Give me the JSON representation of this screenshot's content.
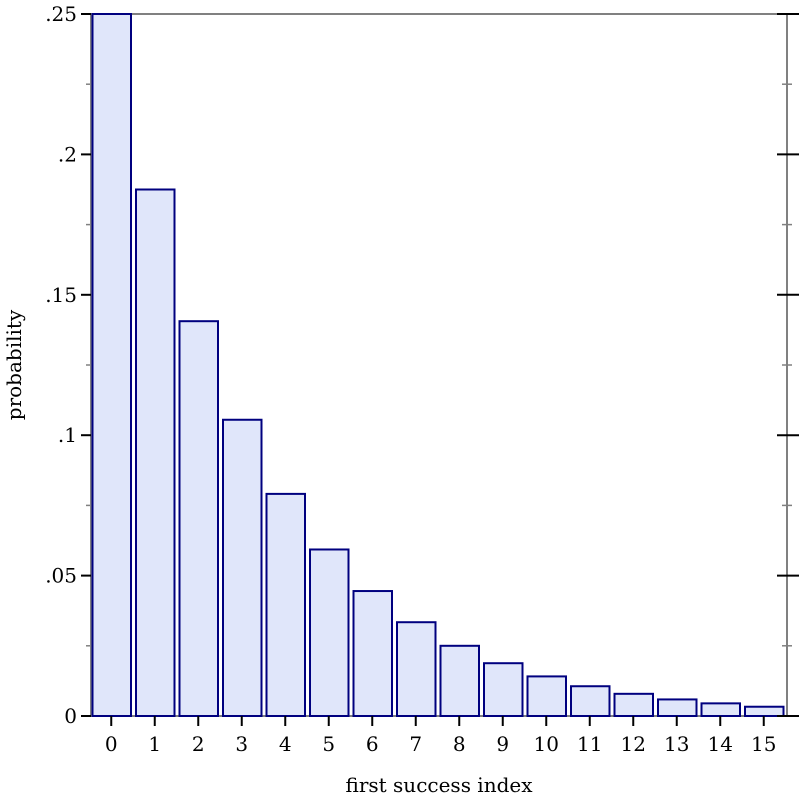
{
  "chart_data": {
    "type": "bar",
    "title": "",
    "xlabel": "first success index",
    "ylabel": "probability",
    "categories": [
      "0",
      "1",
      "2",
      "3",
      "4",
      "5",
      "6",
      "7",
      "8",
      "9",
      "10",
      "11",
      "12",
      "13",
      "14",
      "15"
    ],
    "values": [
      0.25,
      0.1875,
      0.1406,
      0.1055,
      0.0791,
      0.0593,
      0.0445,
      0.0334,
      0.025,
      0.0188,
      0.0141,
      0.0106,
      0.0079,
      0.0059,
      0.0045,
      0.0033
    ],
    "xlim": [
      -0.5,
      15.5
    ],
    "ylim": [
      0,
      0.25
    ],
    "yticks": [
      {
        "value": 0,
        "label": "0"
      },
      {
        "value": 0.05,
        "label": ".05"
      },
      {
        "value": 0.1,
        "label": ".1"
      },
      {
        "value": 0.15,
        "label": ".15"
      },
      {
        "value": 0.2,
        "label": ".2"
      },
      {
        "value": 0.25,
        "label": ".25"
      }
    ],
    "yminor_ticks": [
      0.025,
      0.075,
      0.125,
      0.175,
      0.225
    ],
    "grid": false,
    "legend": "none",
    "colors": {
      "bar_fill": "#e0e6fa",
      "bar_stroke": "#00007f",
      "frame": "#808080",
      "tick": "#000000"
    }
  }
}
